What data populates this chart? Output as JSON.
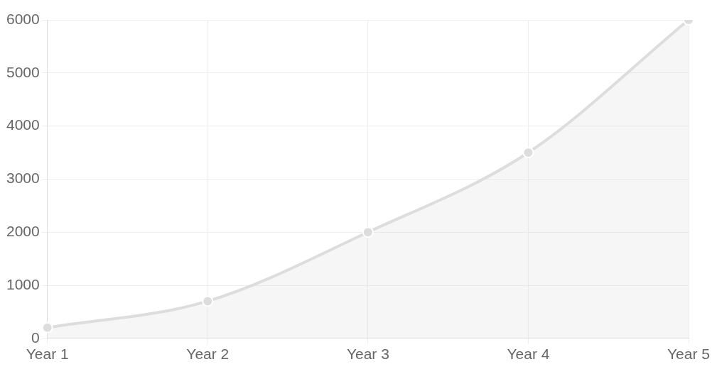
{
  "chart_data": {
    "type": "area",
    "categories": [
      "Year 1",
      "Year 2",
      "Year 3",
      "Year 4",
      "Year 5"
    ],
    "series": [
      {
        "color": "#dddddd",
        "values": [
          200,
          700,
          2000,
          3500,
          6000
        ]
      }
    ],
    "ylim": [
      0,
      6000
    ],
    "yticks": [
      0,
      1000,
      2000,
      3000,
      4000,
      5000,
      6000
    ],
    "grid": true,
    "legend": false,
    "marker": "circle",
    "line_style": "solid"
  }
}
